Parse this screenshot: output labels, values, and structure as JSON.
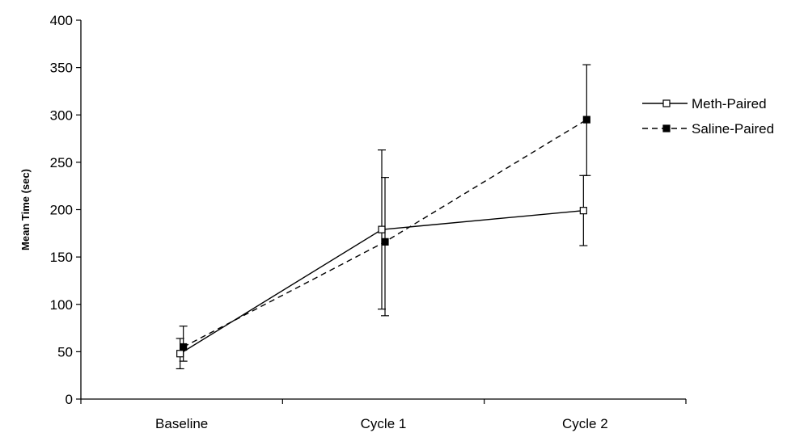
{
  "chart_data": {
    "type": "line",
    "title": "",
    "xlabel": "",
    "ylabel": "Mean Time (sec)",
    "ylim": [
      0,
      400
    ],
    "yticks": [
      0,
      50,
      100,
      150,
      200,
      250,
      300,
      350,
      400
    ],
    "categories": [
      "Baseline",
      "Cycle 1",
      "Cycle 2"
    ],
    "grid": false,
    "legend_position": "right",
    "series": [
      {
        "name": "Meth-Paired",
        "style": "solid",
        "marker": "open-square",
        "color": "#000000",
        "values": [
          48,
          179,
          199
        ],
        "error_low": [
          32,
          95,
          162
        ],
        "error_high": [
          64,
          263,
          236
        ]
      },
      {
        "name": "Saline-Paired",
        "style": "dashed",
        "marker": "filled-square",
        "color": "#000000",
        "values": [
          55,
          166,
          295
        ],
        "error_low": [
          40,
          88,
          236
        ],
        "error_high": [
          77,
          234,
          353
        ]
      }
    ]
  }
}
